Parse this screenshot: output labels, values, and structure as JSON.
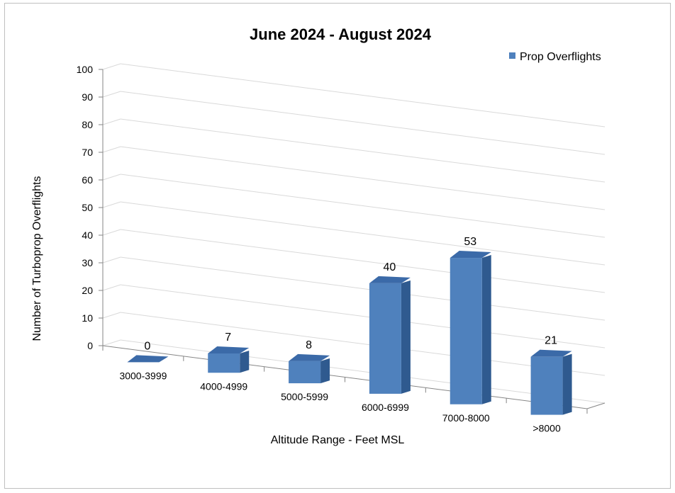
{
  "chart_data": {
    "type": "bar",
    "title": "June 2024 - August 2024",
    "xlabel": "Altitude Range - Feet MSL",
    "ylabel": "Number of Turboprop Overflights",
    "categories": [
      "3000-3999",
      "4000-4999",
      "5000-5999",
      "6000-6999",
      "7000-8000",
      ">8000"
    ],
    "series": [
      {
        "name": "Prop Overflights",
        "values": [
          0,
          7,
          8,
          40,
          53,
          21
        ]
      }
    ],
    "ylim": [
      0,
      100
    ],
    "yticks": [
      0,
      10,
      20,
      30,
      40,
      50,
      60,
      70,
      80,
      90,
      100
    ],
    "grid": true,
    "legend_position": "top-right",
    "three_d": true,
    "colors": {
      "bar_front": "#4f81bd",
      "bar_top": "#3b6aa8",
      "bar_side": "#2f5a8f",
      "gridline": "#d9d9d9",
      "axis": "#868686"
    }
  }
}
